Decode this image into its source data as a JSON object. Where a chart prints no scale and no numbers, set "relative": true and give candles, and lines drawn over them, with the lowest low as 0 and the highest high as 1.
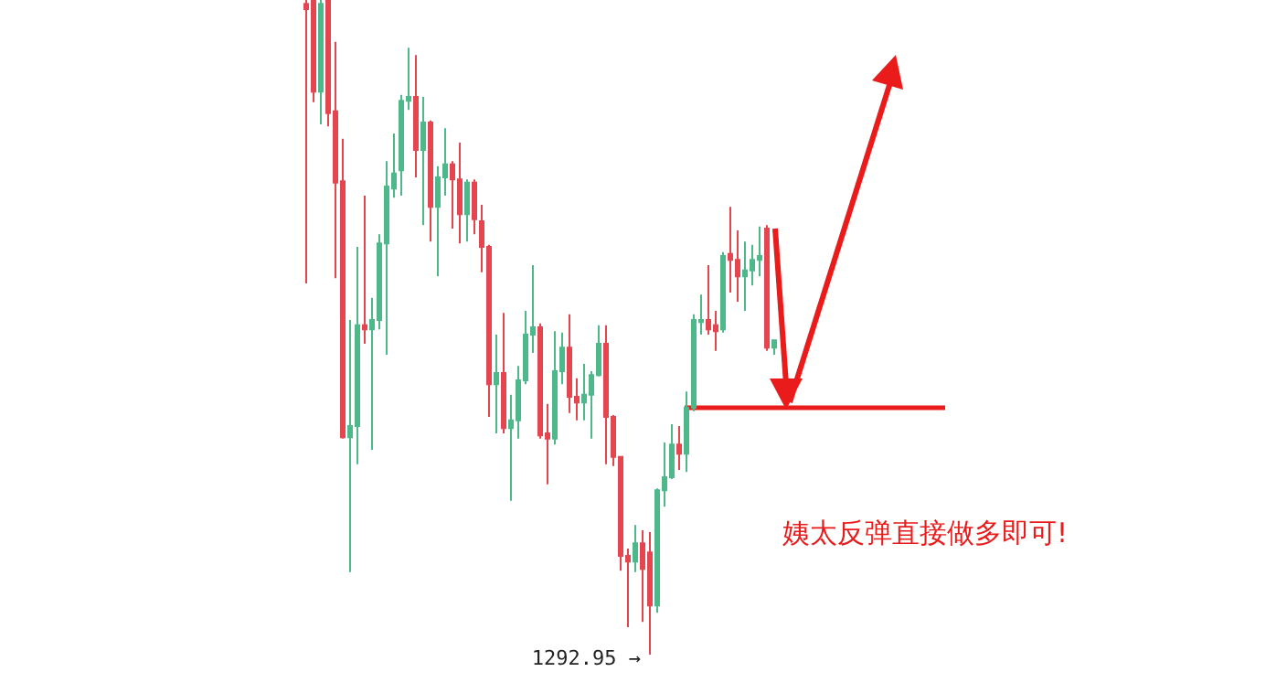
{
  "chart_data": {
    "type": "candlestick",
    "relative": true,
    "categories": [
      null,
      null,
      null,
      null,
      null,
      null,
      null,
      null,
      null,
      null,
      null,
      null,
      null,
      null,
      null,
      null,
      null,
      null,
      null,
      null,
      null,
      null,
      null,
      null,
      null,
      null,
      null,
      null,
      null,
      null,
      null,
      null,
      null,
      null,
      null,
      null,
      null,
      null,
      null,
      null,
      null,
      null,
      null,
      null,
      null,
      null,
      null,
      null,
      null,
      null,
      null,
      null,
      null,
      null,
      null,
      null,
      null,
      null,
      null,
      null,
      null,
      null,
      null,
      null,
      null
    ],
    "ohlc": [
      [
        0.994,
        1,
        0.567,
        0.986
      ],
      [
        1,
        1,
        0.844,
        0.86
      ],
      [
        0.86,
        1,
        0.81,
        0.994
      ],
      [
        1,
        1,
        0.807,
        0.827
      ],
      [
        0.83,
        0.936,
        0.575,
        0.721
      ],
      [
        0.723,
        0.788,
        0.33,
        0.332
      ],
      [
        0.332,
        0.511,
        0.126,
        0.349
      ],
      [
        0.349,
        0.623,
        0.291,
        0.503
      ],
      [
        0.503,
        0.701,
        0.475,
        0.497
      ],
      [
        0.497,
        0.545,
        0.313,
        0.511
      ],
      [
        0.511,
        0.642,
        0.497,
        0.628
      ],
      [
        0.628,
        0.754,
        0.458,
        0.715
      ],
      [
        0.712,
        0.796,
        0.698,
        0.735
      ],
      [
        0.74,
        0.855,
        0.701,
        0.846
      ],
      [
        0.846,
        0.927,
        0.832,
        0.852
      ],
      [
        0.852,
        0.916,
        0.729,
        0.771
      ],
      [
        0.771,
        0.852,
        0.656,
        0.813
      ],
      [
        0.813,
        0.816,
        0.631,
        0.684
      ],
      [
        0.684,
        0.746,
        0.578,
        0.729
      ],
      [
        0.729,
        0.804,
        0.701,
        0.749
      ],
      [
        0.749,
        0.754,
        0.651,
        0.726
      ],
      [
        0.726,
        0.782,
        0.628,
        0.673
      ],
      [
        0.673,
        0.726,
        0.631,
        0.721
      ],
      [
        0.721,
        0.726,
        0.642,
        0.665
      ],
      [
        0.662,
        0.687,
        0.584,
        0.623
      ],
      [
        0.623,
        0.626,
        0.363,
        0.413
      ],
      [
        0.413,
        0.489,
        0.338,
        0.43
      ],
      [
        0.43,
        0.522,
        0.338,
        0.346
      ],
      [
        0.346,
        0.397,
        0.235,
        0.358
      ],
      [
        0.358,
        0.441,
        0.33,
        0.419
      ],
      [
        0.419,
        0.525,
        0.413,
        0.489
      ],
      [
        0.489,
        0.595,
        0.461,
        0.5
      ],
      [
        0.5,
        0.506,
        0.33,
        0.335
      ],
      [
        0.338,
        0.383,
        0.26,
        0.33
      ],
      [
        0.33,
        0.494,
        0.321,
        0.433
      ],
      [
        0.433,
        0.492,
        0.413,
        0.469
      ],
      [
        0.469,
        0.52,
        0.369,
        0.394
      ],
      [
        0.394,
        0.422,
        0.358,
        0.385
      ],
      [
        0.385,
        0.444,
        0.358,
        0.397
      ],
      [
        0.397,
        0.433,
        0.33,
        0.427
      ],
      [
        0.427,
        0.503,
        0.425,
        0.475
      ],
      [
        0.475,
        0.503,
        0.291,
        0.363
      ],
      [
        0.363,
        0.366,
        0.288,
        0.302
      ],
      [
        0.302,
        0.302,
        0.128,
        0.151
      ],
      [
        0.151,
        0.162,
        0.042,
        0.142
      ],
      [
        0.142,
        0.198,
        0.126,
        0.17
      ],
      [
        0.17,
        0.19,
        0.05,
        0.131
      ],
      [
        0.156,
        0.187,
        0,
        0.075
      ],
      [
        0.075,
        0.254,
        0.064,
        0.251
      ],
      [
        0.251,
        0.324,
        0.226,
        0.271
      ],
      [
        0.271,
        0.352,
        0.268,
        0.321
      ],
      [
        0.321,
        0.349,
        0.282,
        0.307
      ],
      [
        0.307,
        0.402,
        0.279,
        0.377
      ],
      [
        0.377,
        0.52,
        0.372,
        0.511
      ],
      [
        0.508,
        0.55,
        0.489,
        0.511
      ],
      [
        0.511,
        0.595,
        0.489,
        0.497
      ],
      [
        0.503,
        0.525,
        0.464,
        0.494
      ],
      [
        0.497,
        0.615,
        0.492,
        0.609
      ],
      [
        0.612,
        0.684,
        0.553,
        0.603
      ],
      [
        0.603,
        0.648,
        0.539,
        0.578
      ],
      [
        0.578,
        0.631,
        0.525,
        0.587
      ],
      [
        0.587,
        0.626,
        0.564,
        0.603
      ],
      [
        0.603,
        0.654,
        0.578,
        0.609
      ],
      [
        0.651,
        0.656,
        0.464,
        0.469
      ],
      [
        0.469,
        0.48,
        0.458,
        0.48
      ]
    ],
    "ref_lines": [
      {
        "axis": "y",
        "value": 0.377,
        "color": "#ea1b1b",
        "line_style": "solid"
      }
    ],
    "annotations": [
      "1292.95 →",
      "姨太反弹直接做多即可!"
    ]
  }
}
